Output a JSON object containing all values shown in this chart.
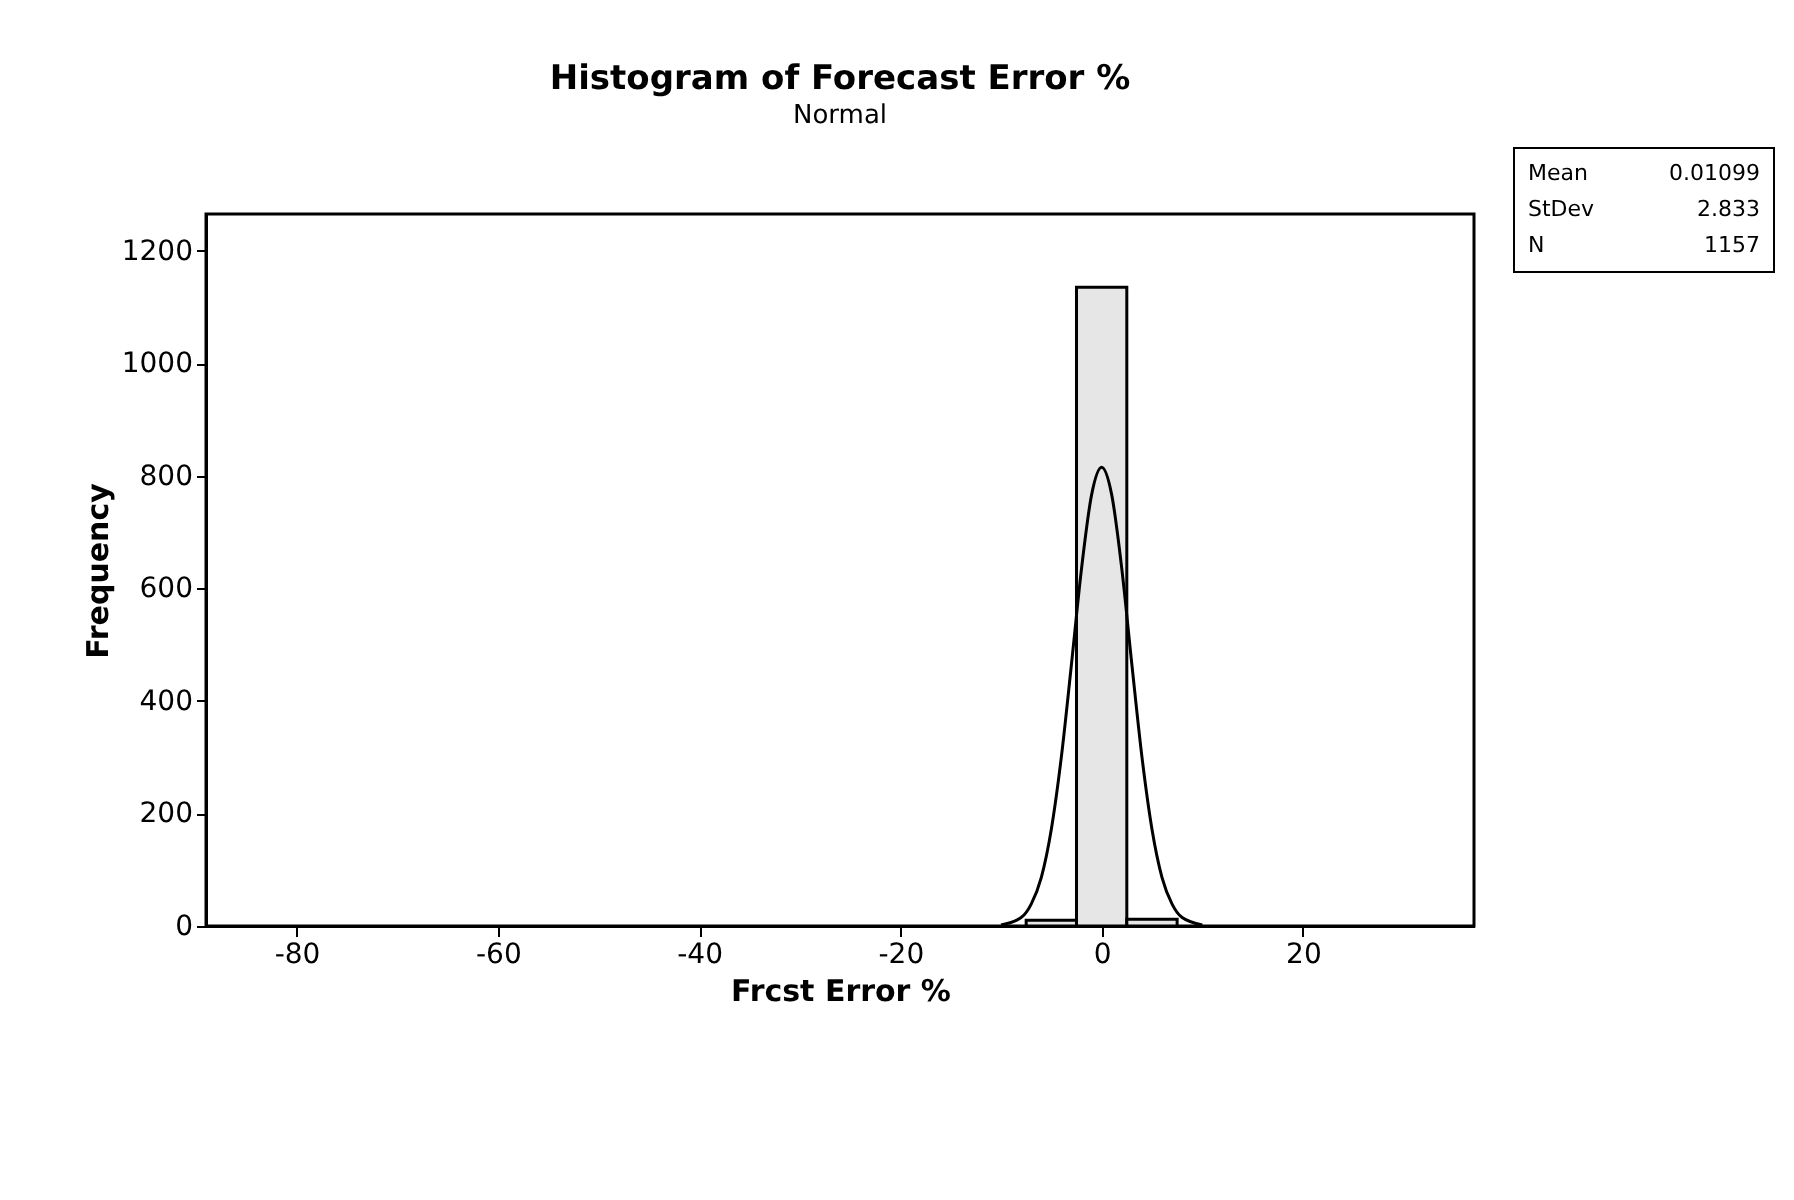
{
  "chart_data": {
    "type": "histogram",
    "title": "Histogram of Forecast Error %",
    "subtitle": "Normal",
    "xlabel": "Frcst Error %",
    "ylabel": "Frequency",
    "bins": [
      -7.5,
      -2.5,
      2.5,
      7.5
    ],
    "values": [
      10,
      1135,
      12
    ],
    "color": "#e6e6e6",
    "series": [
      {
        "type": "line",
        "color": "#000000",
        "x": [
          -10,
          -8,
          -7,
          -6,
          -5,
          -4,
          -3,
          -2,
          -1,
          0,
          1,
          2,
          3,
          4,
          5,
          6,
          7,
          8,
          10
        ],
        "values": [
          2,
          15,
          39,
          86,
          172,
          301,
          465,
          635,
          766,
          815,
          766,
          635,
          465,
          301,
          172,
          86,
          39,
          15,
          2
        ]
      }
    ],
    "xlim": [
      -89,
      37
    ],
    "xticks": [
      -80,
      -60,
      -40,
      -20,
      0,
      20
    ],
    "ylim": [
      0,
      1265
    ],
    "yticks": [
      0,
      200,
      400,
      600,
      800,
      1000,
      1200
    ],
    "grid": false,
    "annotations": [
      "Mean",
      "0.01099",
      "StDev",
      "2.833",
      "N",
      "1157"
    ]
  }
}
